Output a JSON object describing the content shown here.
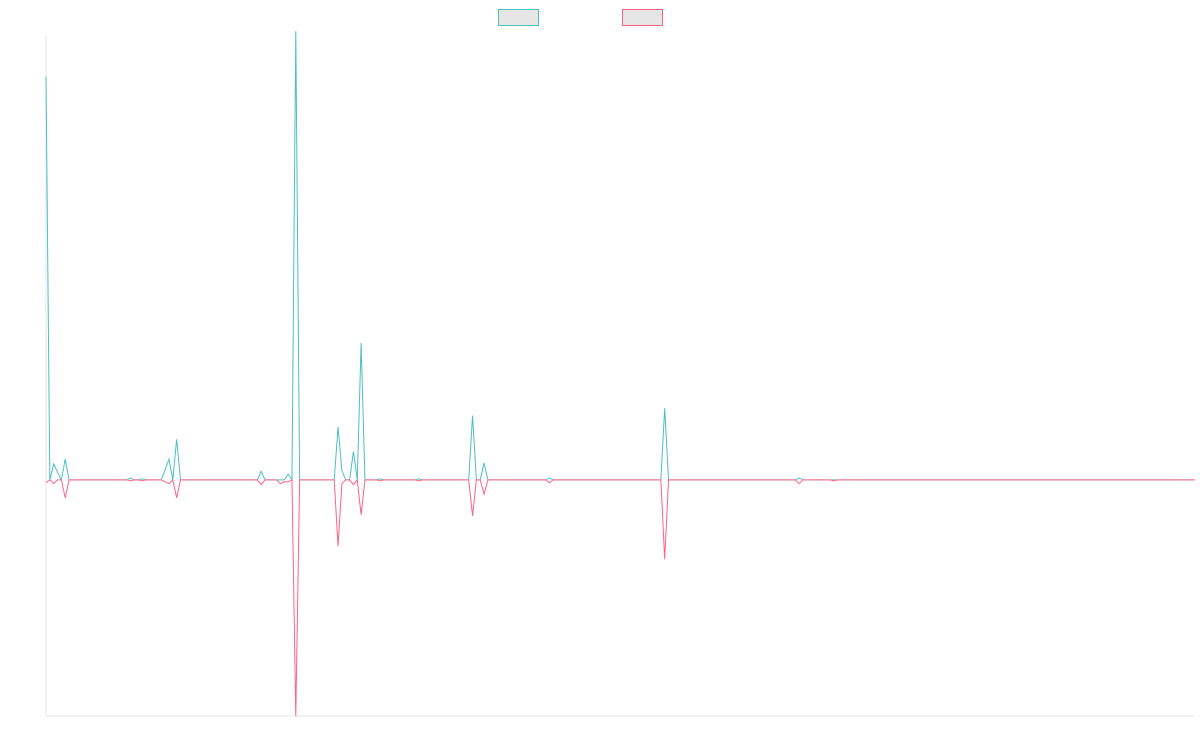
{
  "chart_data": {
    "type": "line",
    "title": "",
    "xlabel": "",
    "ylabel": "",
    "grid": false,
    "legend": "top-center",
    "ylim": [
      -250,
      470
    ],
    "x_count": 300,
    "series": [
      {
        "name": "",
        "color": "#4bc0c0",
        "fill": "#e6e6e6",
        "points": [
          [
            0,
            427
          ],
          [
            1,
            0
          ],
          [
            2,
            17
          ],
          [
            3,
            8
          ],
          [
            4,
            0
          ],
          [
            5,
            22
          ],
          [
            6,
            0
          ],
          [
            21,
            0
          ],
          [
            22,
            2
          ],
          [
            23,
            0
          ],
          [
            24,
            0
          ],
          [
            25,
            1
          ],
          [
            26,
            0
          ],
          [
            30,
            0
          ],
          [
            32,
            22
          ],
          [
            33,
            0
          ],
          [
            34,
            43
          ],
          [
            35,
            0
          ],
          [
            55,
            0
          ],
          [
            56,
            9
          ],
          [
            57,
            0
          ],
          [
            62,
            0
          ],
          [
            63,
            6
          ],
          [
            64,
            0
          ],
          [
            64,
            0
          ],
          [
            65,
            475
          ],
          [
            66,
            0
          ],
          [
            75,
            0
          ],
          [
            76,
            56
          ],
          [
            77,
            10
          ],
          [
            78,
            0
          ],
          [
            79,
            0
          ],
          [
            80,
            30
          ],
          [
            81,
            0
          ],
          [
            82,
            145
          ],
          [
            83,
            0
          ],
          [
            86,
            0
          ],
          [
            87,
            1
          ],
          [
            88,
            0
          ],
          [
            96,
            0
          ],
          [
            97,
            1
          ],
          [
            98,
            0
          ],
          [
            110,
            0
          ],
          [
            111,
            68
          ],
          [
            112,
            0
          ],
          [
            113,
            0
          ],
          [
            114,
            18
          ],
          [
            115,
            0
          ],
          [
            130,
            0
          ],
          [
            131,
            2
          ],
          [
            132,
            0
          ],
          [
            160,
            0
          ],
          [
            161,
            76
          ],
          [
            162,
            0
          ],
          [
            195,
            0
          ],
          [
            196,
            2
          ],
          [
            197,
            0
          ],
          [
            299,
            0
          ]
        ]
      },
      {
        "name": "",
        "color": "#ff6384",
        "fill": "#e6e6e6",
        "points": [
          [
            0,
            -3
          ],
          [
            1,
            0
          ],
          [
            2,
            -4
          ],
          [
            3,
            0
          ],
          [
            4,
            0
          ],
          [
            5,
            -19
          ],
          [
            6,
            0
          ],
          [
            21,
            0
          ],
          [
            22,
            -1
          ],
          [
            23,
            0
          ],
          [
            24,
            0
          ],
          [
            25,
            -1
          ],
          [
            26,
            0
          ],
          [
            30,
            0
          ],
          [
            32,
            -4
          ],
          [
            33,
            0
          ],
          [
            34,
            -19
          ],
          [
            35,
            0
          ],
          [
            55,
            0
          ],
          [
            56,
            -5
          ],
          [
            57,
            0
          ],
          [
            60,
            0
          ],
          [
            61,
            -4
          ],
          [
            62,
            -2
          ],
          [
            63,
            -2
          ],
          [
            64,
            0
          ],
          [
            64,
            0
          ],
          [
            65,
            -250
          ],
          [
            66,
            0
          ],
          [
            75,
            0
          ],
          [
            76,
            -70
          ],
          [
            77,
            -4
          ],
          [
            78,
            0
          ],
          [
            79,
            0
          ],
          [
            80,
            -5
          ],
          [
            81,
            0
          ],
          [
            82,
            -37
          ],
          [
            83,
            0
          ],
          [
            86,
            0
          ],
          [
            87,
            -1
          ],
          [
            88,
            0
          ],
          [
            96,
            0
          ],
          [
            97,
            -1
          ],
          [
            98,
            0
          ],
          [
            110,
            0
          ],
          [
            111,
            -38
          ],
          [
            112,
            0
          ],
          [
            113,
            0
          ],
          [
            114,
            -15
          ],
          [
            115,
            0
          ],
          [
            130,
            0
          ],
          [
            131,
            -3
          ],
          [
            132,
            0
          ],
          [
            160,
            0
          ],
          [
            161,
            -84
          ],
          [
            162,
            0
          ],
          [
            195,
            0
          ],
          [
            196,
            -4
          ],
          [
            197,
            0
          ],
          [
            204,
            0
          ],
          [
            205,
            -1
          ],
          [
            206,
            0
          ],
          [
            299,
            0
          ]
        ]
      }
    ]
  }
}
